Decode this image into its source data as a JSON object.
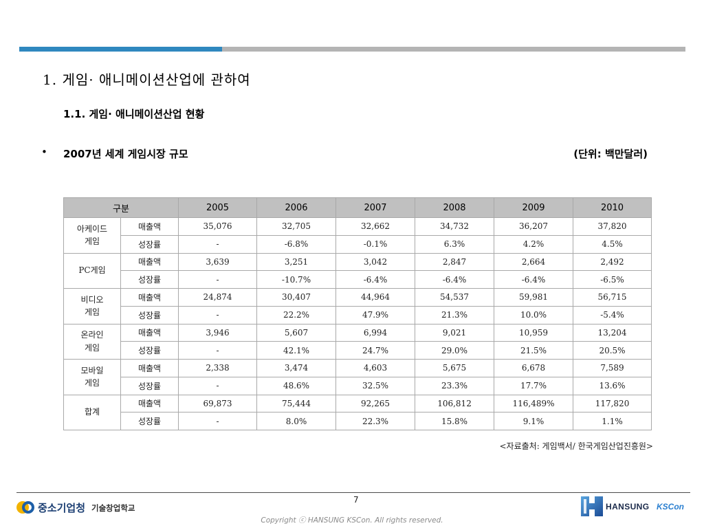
{
  "slide": {
    "title": "1. 게임· 애니메이션산업에 관하여",
    "subtitle": "1.1. 게임· 애니메이션산업 현황",
    "bullet": "•",
    "heading": "2007년 세계 게임시장 규모",
    "unit": "(단위: 백만달러)",
    "source": "<자료출처: 게임백서/ 한국게임산업진흥원>",
    "page_number": "7"
  },
  "table": {
    "header": {
      "category": "구분",
      "years": [
        "2005",
        "2006",
        "2007",
        "2008",
        "2009",
        "2010"
      ]
    },
    "groups": [
      {
        "name": "아케이드\n게임",
        "rows": [
          {
            "label": "매출액",
            "values": [
              "35,076",
              "32,705",
              "32,662",
              "34,732",
              "36,207",
              "37,820"
            ]
          },
          {
            "label": "성장률",
            "values": [
              "-",
              "-6.8%",
              "-0.1%",
              "6.3%",
              "4.2%",
              "4.5%"
            ]
          }
        ]
      },
      {
        "name": "PC게임",
        "rows": [
          {
            "label": "매출액",
            "values": [
              "3,639",
              "3,251",
              "3,042",
              "2,847",
              "2,664",
              "2,492"
            ]
          },
          {
            "label": "성장률",
            "values": [
              "-",
              "-10.7%",
              "-6.4%",
              "-6.4%",
              "-6.4%",
              "-6.5%"
            ]
          }
        ]
      },
      {
        "name": "비디오\n게임",
        "rows": [
          {
            "label": "매출액",
            "values": [
              "24,874",
              "30,407",
              "44,964",
              "54,537",
              "59,981",
              "56,715"
            ]
          },
          {
            "label": "성장률",
            "values": [
              "-",
              "22.2%",
              "47.9%",
              "21.3%",
              "10.0%",
              "-5.4%"
            ]
          }
        ]
      },
      {
        "name": "온라인\n게임",
        "rows": [
          {
            "label": "매출액",
            "values": [
              "3,946",
              "5,607",
              "6,994",
              "9,021",
              "10,959",
              "13,204"
            ]
          },
          {
            "label": "성장률",
            "values": [
              "-",
              "42.1%",
              "24.7%",
              "29.0%",
              "21.5%",
              "20.5%"
            ]
          }
        ]
      },
      {
        "name": "모바일\n게임",
        "rows": [
          {
            "label": "매출액",
            "values": [
              "2,338",
              "3,474",
              "4,603",
              "5,675",
              "6,678",
              "7,589"
            ]
          },
          {
            "label": "성장률",
            "values": [
              "-",
              "48.6%",
              "32.5%",
              "23.3%",
              "17.7%",
              "13.6%"
            ]
          }
        ]
      },
      {
        "name": "합계",
        "rows": [
          {
            "label": "매출액",
            "values": [
              "69,873",
              "75,444",
              "92,265",
              "106,812",
              "116,489%",
              "117,820"
            ]
          },
          {
            "label": "성장률",
            "values": [
              "-",
              "8.0%",
              "22.3%",
              "15.8%",
              "9.1%",
              "1.1%"
            ]
          }
        ]
      }
    ]
  },
  "footer": {
    "left_logo": {
      "name": "중소기업청",
      "sub": "기술창업학교",
      "icon": "sme-agency-logo-icon"
    },
    "right_logo": {
      "name": "HANSUNG",
      "sub": "KSCon",
      "icon": "hansung-h-logo-icon"
    },
    "copyright": "Copyright ⓒ HANSUNG KSCon. All rights reserved."
  },
  "colors": {
    "accent": "#2f88bf",
    "bar_gray": "#b4b4b4",
    "header_bg": "#c0c0c0"
  }
}
